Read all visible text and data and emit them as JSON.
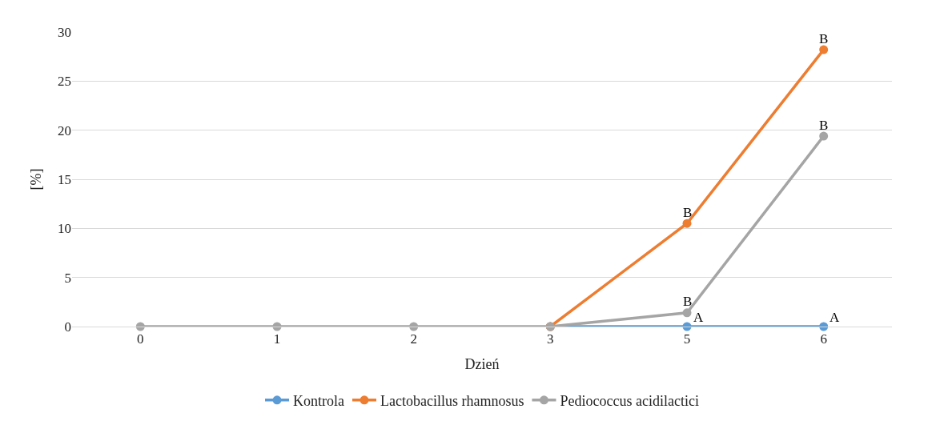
{
  "chart_data": {
    "type": "line",
    "xlabel": "Dzień",
    "ylabel": "[%]",
    "categories": [
      "0",
      "1",
      "2",
      "3",
      "5",
      "6"
    ],
    "series": [
      {
        "name": "Kontrola",
        "color": "#5b9bd5",
        "values": [
          null,
          null,
          null,
          0,
          0,
          0
        ]
      },
      {
        "name": "Lactobacillus rhamnosus",
        "color": "#ed7d31",
        "values": [
          null,
          null,
          null,
          0,
          10.5,
          28.2
        ]
      },
      {
        "name": "Pediococcus acidilactici",
        "color": "#a5a5a5",
        "values": [
          0,
          0,
          0,
          0,
          1.4,
          19.4
        ]
      }
    ],
    "ylim": [
      0,
      30
    ],
    "yticks": [
      0,
      5,
      10,
      15,
      20,
      25,
      30
    ],
    "grid": "y",
    "legend": "bottom",
    "marker": "circle",
    "line_style": "solid",
    "annotations": [
      {
        "text": "B",
        "x": "5",
        "y": 10.5
      },
      {
        "text": "B",
        "x": "5",
        "y": 1.4
      },
      {
        "text": "A",
        "x": "5",
        "y": 0
      },
      {
        "text": "B",
        "x": "6",
        "y": 28.2
      },
      {
        "text": "B",
        "x": "6",
        "y": 19.4
      },
      {
        "text": "A",
        "x": "6",
        "y": 0
      }
    ]
  }
}
